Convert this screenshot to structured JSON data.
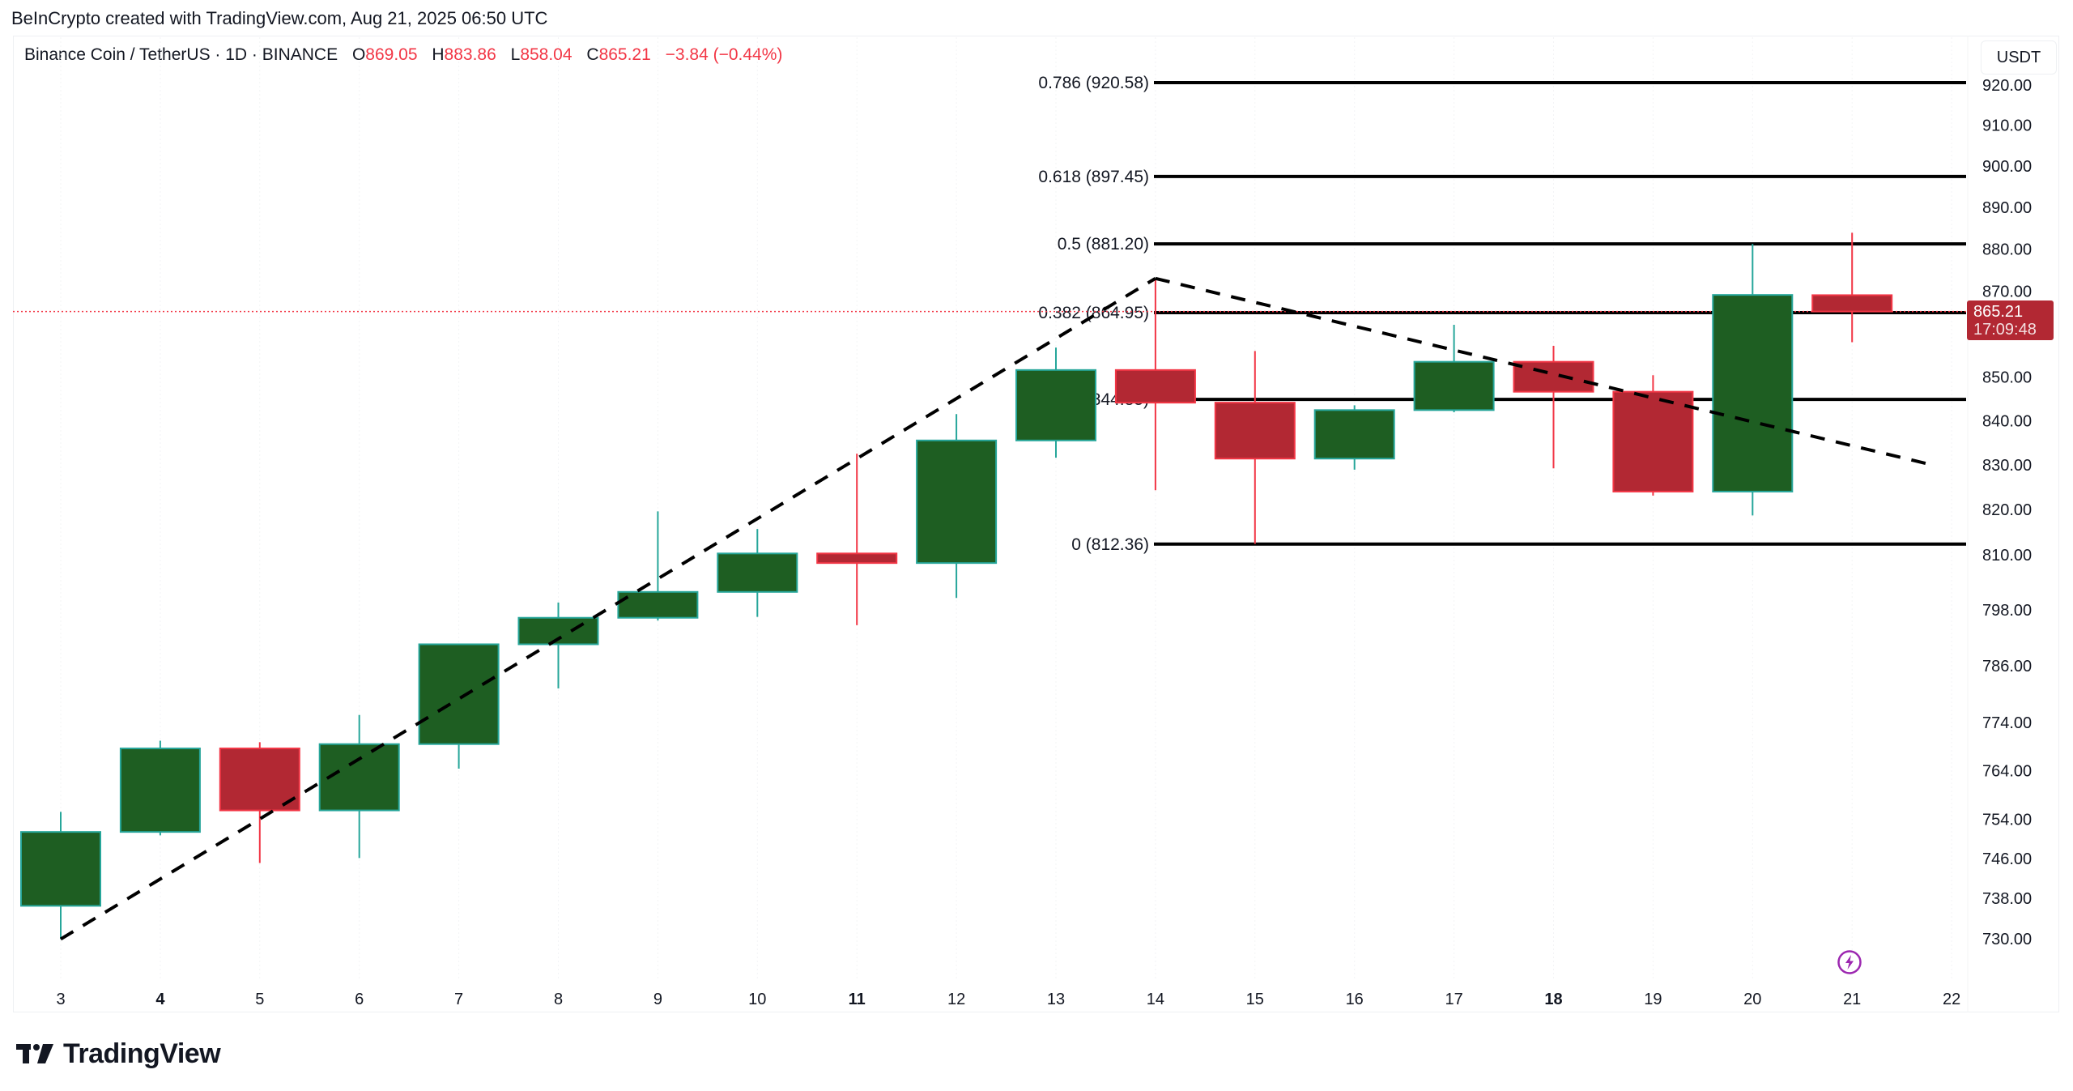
{
  "attribution": "BeInCrypto created with TradingView.com, Aug 21, 2025 06:50 UTC",
  "legend": {
    "symbol": "Binance Coin / TetherUS · 1D · BINANCE",
    "open_key": "O",
    "open": "869.05",
    "high_key": "H",
    "high": "883.86",
    "low_key": "L",
    "low": "858.04",
    "close_key": "C",
    "close": "865.21",
    "change": "−3.84 (−0.44%)"
  },
  "currency": "USDT",
  "last_price": {
    "value": "865.21",
    "countdown": "17:09:48"
  },
  "footer": {
    "brand": "TradingView"
  },
  "colors": {
    "up_body": "#1e5e22",
    "up_border": "#26a69a",
    "up_wick": "#26a69a",
    "down_body": "#b22833",
    "down_border": "#f23645",
    "down_wick": "#f23645",
    "fib_line": "#000000",
    "trend_line": "#000000",
    "last_price_line": "#f23645",
    "bolt": "#9c27b0"
  },
  "chart_data": {
    "type": "candlestick",
    "title": "Binance Coin / TetherUS · 1D · BINANCE",
    "xlabel": "",
    "ylabel": "USDT",
    "y_scale": "log",
    "ylim": [
      724,
      934
    ],
    "grid": false,
    "categories": [
      "3",
      "4",
      "5",
      "6",
      "7",
      "8",
      "9",
      "10",
      "11",
      "12",
      "13",
      "14",
      "15",
      "16",
      "17",
      "18",
      "19",
      "20",
      "21"
    ],
    "x_tick_labels": [
      {
        "label": "3",
        "bold": false
      },
      {
        "label": "4",
        "bold": true
      },
      {
        "label": "5",
        "bold": false
      },
      {
        "label": "6",
        "bold": false
      },
      {
        "label": "7",
        "bold": false
      },
      {
        "label": "8",
        "bold": false
      },
      {
        "label": "9",
        "bold": false
      },
      {
        "label": "10",
        "bold": false
      },
      {
        "label": "11",
        "bold": true
      },
      {
        "label": "12",
        "bold": false
      },
      {
        "label": "13",
        "bold": false
      },
      {
        "label": "14",
        "bold": false
      },
      {
        "label": "15",
        "bold": false
      },
      {
        "label": "16",
        "bold": false
      },
      {
        "label": "17",
        "bold": false
      },
      {
        "label": "18",
        "bold": true
      },
      {
        "label": "19",
        "bold": false
      },
      {
        "label": "20",
        "bold": false
      },
      {
        "label": "21",
        "bold": false
      },
      {
        "label": "22",
        "bold": false
      }
    ],
    "y_tick_labels": [
      "920.00",
      "910.00",
      "900.00",
      "890.00",
      "880.00",
      "870.00",
      "850.00",
      "840.00",
      "830.00",
      "820.00",
      "810.00",
      "798.00",
      "786.00",
      "774.00",
      "764.00",
      "754.00",
      "746.00",
      "738.00",
      "730.00"
    ],
    "ohlc": [
      {
        "day": "3",
        "o": 736.5,
        "h": 755.5,
        "l": 729.9,
        "c": 751.4
      },
      {
        "day": "4",
        "o": 751.4,
        "h": 770.2,
        "l": 750.7,
        "c": 768.6
      },
      {
        "day": "5",
        "o": 768.6,
        "h": 769.9,
        "l": 745.1,
        "c": 755.8
      },
      {
        "day": "6",
        "o": 755.8,
        "h": 775.6,
        "l": 746.1,
        "c": 769.5
      },
      {
        "day": "7",
        "o": 769.5,
        "h": 790.6,
        "l": 764.4,
        "c": 790.6
      },
      {
        "day": "8",
        "o": 790.6,
        "h": 799.6,
        "l": 781.2,
        "c": 796.3
      },
      {
        "day": "9",
        "o": 796.3,
        "h": 819.6,
        "l": 795.7,
        "c": 801.9
      },
      {
        "day": "10",
        "o": 801.9,
        "h": 815.7,
        "l": 796.5,
        "c": 810.3
      },
      {
        "day": "11",
        "o": 810.3,
        "h": 832.5,
        "l": 794.7,
        "c": 808.2
      },
      {
        "day": "12",
        "o": 808.2,
        "h": 841.5,
        "l": 800.6,
        "c": 835.5
      },
      {
        "day": "13",
        "o": 835.5,
        "h": 856.8,
        "l": 831.6,
        "c": 851.6
      },
      {
        "day": "14",
        "o": 851.6,
        "h": 872.6,
        "l": 824.3,
        "c": 844.1
      },
      {
        "day": "15",
        "o": 844.1,
        "h": 856.0,
        "l": 812.4,
        "c": 831.4
      },
      {
        "day": "16",
        "o": 831.4,
        "h": 843.5,
        "l": 828.9,
        "c": 842.4
      },
      {
        "day": "17",
        "o": 842.4,
        "h": 862.1,
        "l": 841.9,
        "c": 853.5
      },
      {
        "day": "18",
        "o": 853.5,
        "h": 857.2,
        "l": 829.2,
        "c": 846.6
      },
      {
        "day": "19",
        "o": 846.6,
        "h": 850.4,
        "l": 823.1,
        "c": 824.0
      },
      {
        "day": "20",
        "o": 824.0,
        "h": 881.2,
        "l": 818.7,
        "c": 869.1
      },
      {
        "day": "21",
        "o": 869.05,
        "h": 883.86,
        "l": 858.04,
        "c": 865.21
      }
    ],
    "fib_levels": [
      {
        "ratio": "0.786",
        "price": 920.58,
        "label": "0.786 (920.58)"
      },
      {
        "ratio": "0.618",
        "price": 897.45,
        "label": "0.618 (897.45)"
      },
      {
        "ratio": "0.5",
        "price": 881.2,
        "label": "0.5 (881.20)"
      },
      {
        "ratio": "0.382",
        "price": 864.95,
        "label": "0.382 (864.95)"
      },
      {
        "ratio": "0.236",
        "price": 844.85,
        "label": "0.236 (844.85)"
      },
      {
        "ratio": "0",
        "price": 812.36,
        "label": "0 (812.36)"
      }
    ],
    "trend_lines": [
      {
        "style": "dashed",
        "from": {
          "day": "3",
          "price": 729.9
        },
        "to": {
          "day": "14",
          "price": 873.0
        }
      },
      {
        "style": "dashed",
        "from": {
          "day": "14",
          "price": 873.0
        },
        "to": {
          "day": "21.8",
          "price": 830.0
        }
      }
    ],
    "last_price": 865.21,
    "annotations": [
      {
        "type": "lightning-icon",
        "day": "21"
      }
    ]
  }
}
